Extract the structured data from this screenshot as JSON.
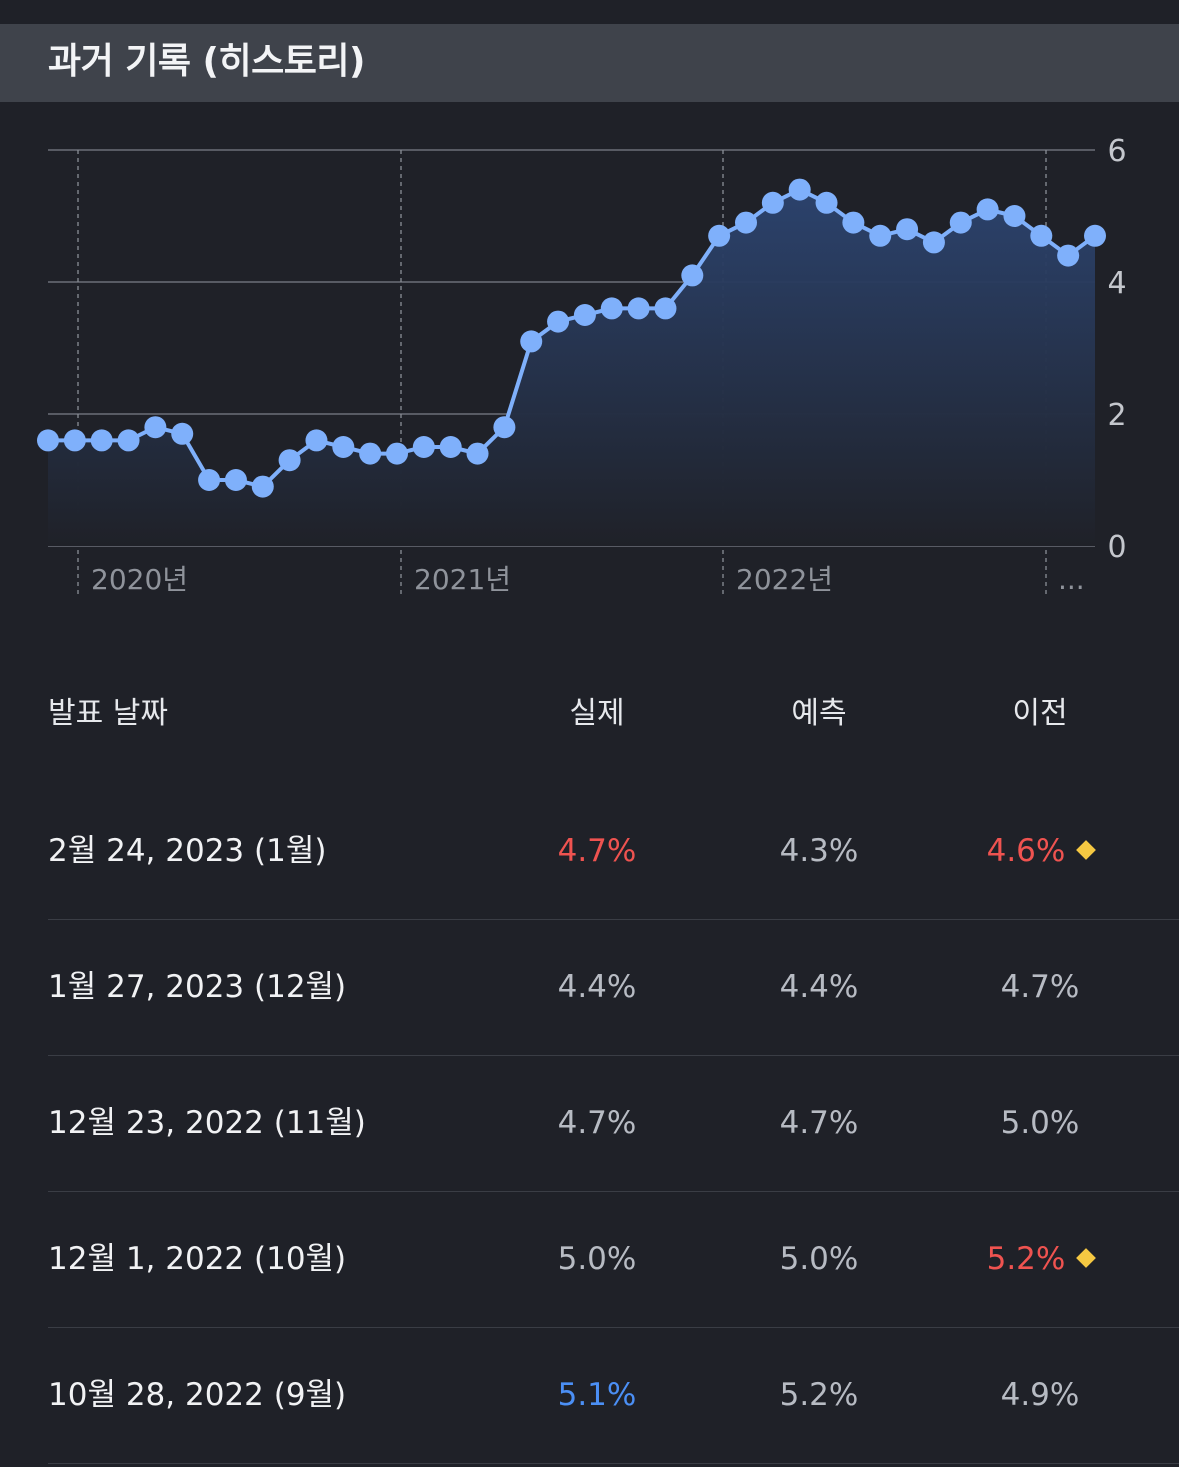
{
  "section": {
    "title": "과거 기록 (히스토리)"
  },
  "chart_data": {
    "type": "area",
    "title": "",
    "xlabel": "",
    "ylabel": "",
    "x_ticks": [
      "2020년",
      "2021년",
      "2022년",
      "..."
    ],
    "y_ticks": [
      "6",
      "4",
      "2",
      "0"
    ],
    "ylim": [
      0,
      6
    ],
    "grid": true,
    "axis_position": "right",
    "series": [
      {
        "values": [
          1.6,
          1.6,
          1.6,
          1.6,
          1.8,
          1.7,
          1.0,
          1.0,
          0.9,
          1.3,
          1.6,
          1.5,
          1.4,
          1.4,
          1.5,
          1.5,
          1.4,
          1.8,
          3.1,
          3.4,
          3.5,
          3.6,
          3.6,
          3.6,
          4.1,
          4.7,
          4.9,
          5.2,
          5.4,
          5.2,
          4.9,
          4.7,
          4.8,
          4.6,
          4.9,
          5.1,
          5.0,
          4.7,
          4.4,
          4.7
        ]
      }
    ],
    "colors": {
      "line": "#7fb0fb",
      "area_top": "#2c4470",
      "area_bottom": "#1f2128"
    }
  },
  "table": {
    "headers": {
      "date": "발표 날짜",
      "actual": "실제",
      "forecast": "예측",
      "previous": "이전"
    },
    "rows": [
      {
        "date": "2월 24, 2023 (1월)",
        "actual": "4.7%",
        "actual_tone": "red",
        "forecast": "4.3%",
        "previous": "4.6%",
        "previous_tone": "red",
        "previous_revised": true
      },
      {
        "date": "1월 27, 2023 (12월)",
        "actual": "4.4%",
        "actual_tone": "neutral",
        "forecast": "4.4%",
        "previous": "4.7%",
        "previous_tone": "neutral",
        "previous_revised": false
      },
      {
        "date": "12월 23, 2022 (11월)",
        "actual": "4.7%",
        "actual_tone": "neutral",
        "forecast": "4.7%",
        "previous": "5.0%",
        "previous_tone": "neutral",
        "previous_revised": false
      },
      {
        "date": "12월 1, 2022 (10월)",
        "actual": "5.0%",
        "actual_tone": "neutral",
        "forecast": "5.0%",
        "previous": "5.2%",
        "previous_tone": "red",
        "previous_revised": true
      },
      {
        "date": "10월 28, 2022 (9월)",
        "actual": "5.1%",
        "actual_tone": "blue",
        "forecast": "5.2%",
        "previous": "4.9%",
        "previous_tone": "neutral",
        "previous_revised": false
      }
    ],
    "colors": {
      "red": "#ef5350",
      "blue": "#4b8ff5",
      "neutral": "#b7bbc3",
      "revised_marker": "#f5c842"
    },
    "revised_marker_icon": "diamond-icon"
  }
}
